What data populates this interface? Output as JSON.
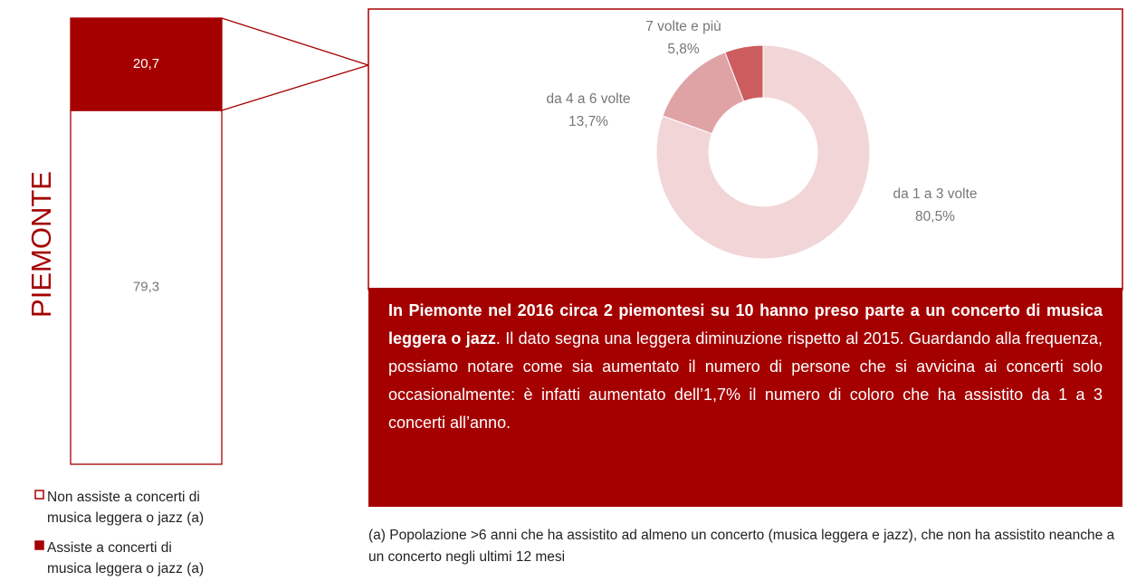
{
  "chart_data": [
    {
      "type": "stacked_bar",
      "categories": [
        "PIEMONTE"
      ],
      "series": [
        {
          "name": "Non assiste a concerti di musica leggera o jazz (a)",
          "color": "#ffffff",
          "values": [
            79.3
          ],
          "value_labels": [
            "79,3"
          ]
        },
        {
          "name": "Assiste a concerti di musica leggera o jazz (a)",
          "color": "#a50000",
          "values": [
            20.7
          ],
          "value_labels": [
            "20,7"
          ]
        }
      ],
      "ylim": [
        0,
        100
      ],
      "legend": "bottom"
    },
    {
      "type": "pie",
      "donut": true,
      "categories": [
        "da 1 a 3 volte",
        "da 4 a 6 volte",
        "7 volte e più"
      ],
      "values": [
        80.5,
        13.7,
        5.8
      ],
      "value_labels": [
        "80,5%",
        "13,7%",
        "5,8%"
      ],
      "colors": [
        "#f2d5d7",
        "#e0a3a5",
        "#cd5c5f"
      ]
    }
  ],
  "callout": {
    "bold": "In Piemonte nel 2016 circa 2 piemontesi su 10 hanno preso parte a un concerto di musica leggera o jazz",
    "text": ". Il dato segna una leggera diminuzione rispetto al 2015. Guardando alla frequenza, possiamo notare come sia aumentato il numero di persone che si avvicina ai concerti solo occasionalmente: è infatti aumentato dell’1,7% il numero di coloro che ha assistito da 1 a 3 concerti all’anno."
  },
  "footnote": "(a) Popolazione >6 anni che ha assistito ad almeno un concerto (musica leggera e jazz), che non ha assistito neanche a un concerto negli ultimi 12 mesi"
}
